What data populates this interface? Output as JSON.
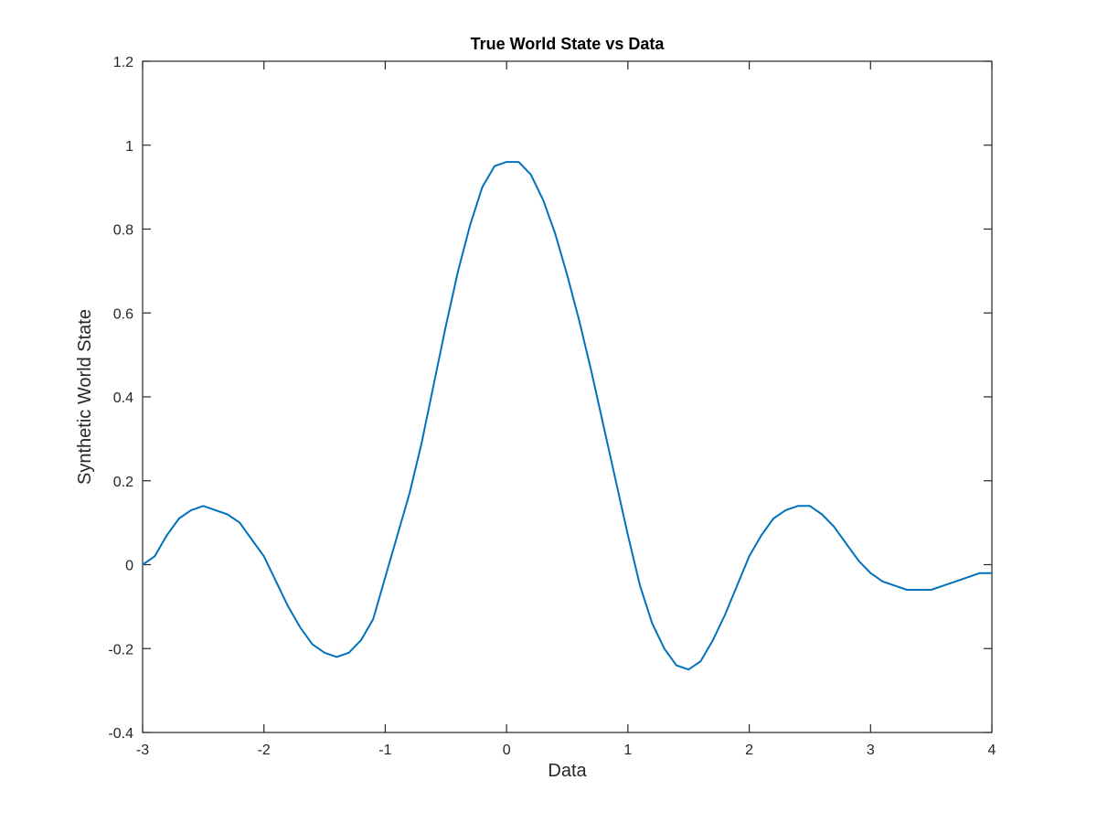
{
  "chart_data": {
    "type": "line",
    "title": "True World State vs Data",
    "xlabel": "Data",
    "ylabel": "Synthetic World State",
    "xlim": [
      -3,
      4
    ],
    "ylim": [
      -0.4,
      1.2
    ],
    "xticks": [
      -3,
      -2,
      -1,
      0,
      1,
      2,
      3,
      4
    ],
    "xtick_labels": [
      "-3",
      "-2",
      "-1",
      "0",
      "1",
      "2",
      "3",
      "4"
    ],
    "yticks": [
      -0.4,
      -0.2,
      0,
      0.2,
      0.4,
      0.6,
      0.8,
      1.0,
      1.2
    ],
    "ytick_labels": [
      "-0.4",
      "-0.2",
      "0",
      "0.2",
      "0.4",
      "0.6",
      "0.8",
      "1",
      "1.2"
    ],
    "grid": false,
    "legend": "none",
    "line_color": "#0072bd",
    "series": [
      {
        "x": [
          -3.0,
          -2.9,
          -2.8,
          -2.7,
          -2.6,
          -2.5,
          -2.4,
          -2.3,
          -2.2,
          -2.1,
          -2.0,
          -1.9,
          -1.8,
          -1.7,
          -1.6,
          -1.5,
          -1.4,
          -1.3,
          -1.2,
          -1.1,
          -1.0,
          -0.9,
          -0.8,
          -0.7,
          -0.6,
          -0.5,
          -0.4,
          -0.3,
          -0.2,
          -0.1,
          0.0,
          0.1,
          0.2,
          0.3,
          0.4,
          0.5,
          0.6,
          0.7,
          0.8,
          0.9,
          1.0,
          1.1,
          1.2,
          1.3,
          1.4,
          1.5,
          1.6,
          1.7,
          1.8,
          1.9,
          2.0,
          2.1,
          2.2,
          2.3,
          2.4,
          2.5,
          2.6,
          2.7,
          2.8,
          2.9,
          3.0,
          3.1,
          3.2,
          3.3,
          3.4,
          3.5,
          3.6,
          3.7,
          3.8,
          3.9,
          4.0
        ],
        "values": [
          0.0,
          0.02,
          0.07,
          0.11,
          0.13,
          0.14,
          0.13,
          0.12,
          0.1,
          0.06,
          0.02,
          -0.04,
          -0.1,
          -0.15,
          -0.19,
          -0.21,
          -0.22,
          -0.21,
          -0.18,
          -0.13,
          -0.03,
          0.07,
          0.17,
          0.29,
          0.43,
          0.57,
          0.7,
          0.81,
          0.9,
          0.95,
          0.96,
          0.96,
          0.93,
          0.87,
          0.79,
          0.69,
          0.58,
          0.46,
          0.33,
          0.2,
          0.07,
          -0.05,
          -0.14,
          -0.2,
          -0.24,
          -0.25,
          -0.23,
          -0.18,
          -0.12,
          -0.05,
          0.02,
          0.07,
          0.11,
          0.13,
          0.14,
          0.14,
          0.12,
          0.09,
          0.05,
          0.01,
          -0.02,
          -0.04,
          -0.05,
          -0.06,
          -0.06,
          -0.06,
          -0.05,
          -0.04,
          -0.03,
          -0.02,
          -0.02
        ]
      }
    ]
  }
}
